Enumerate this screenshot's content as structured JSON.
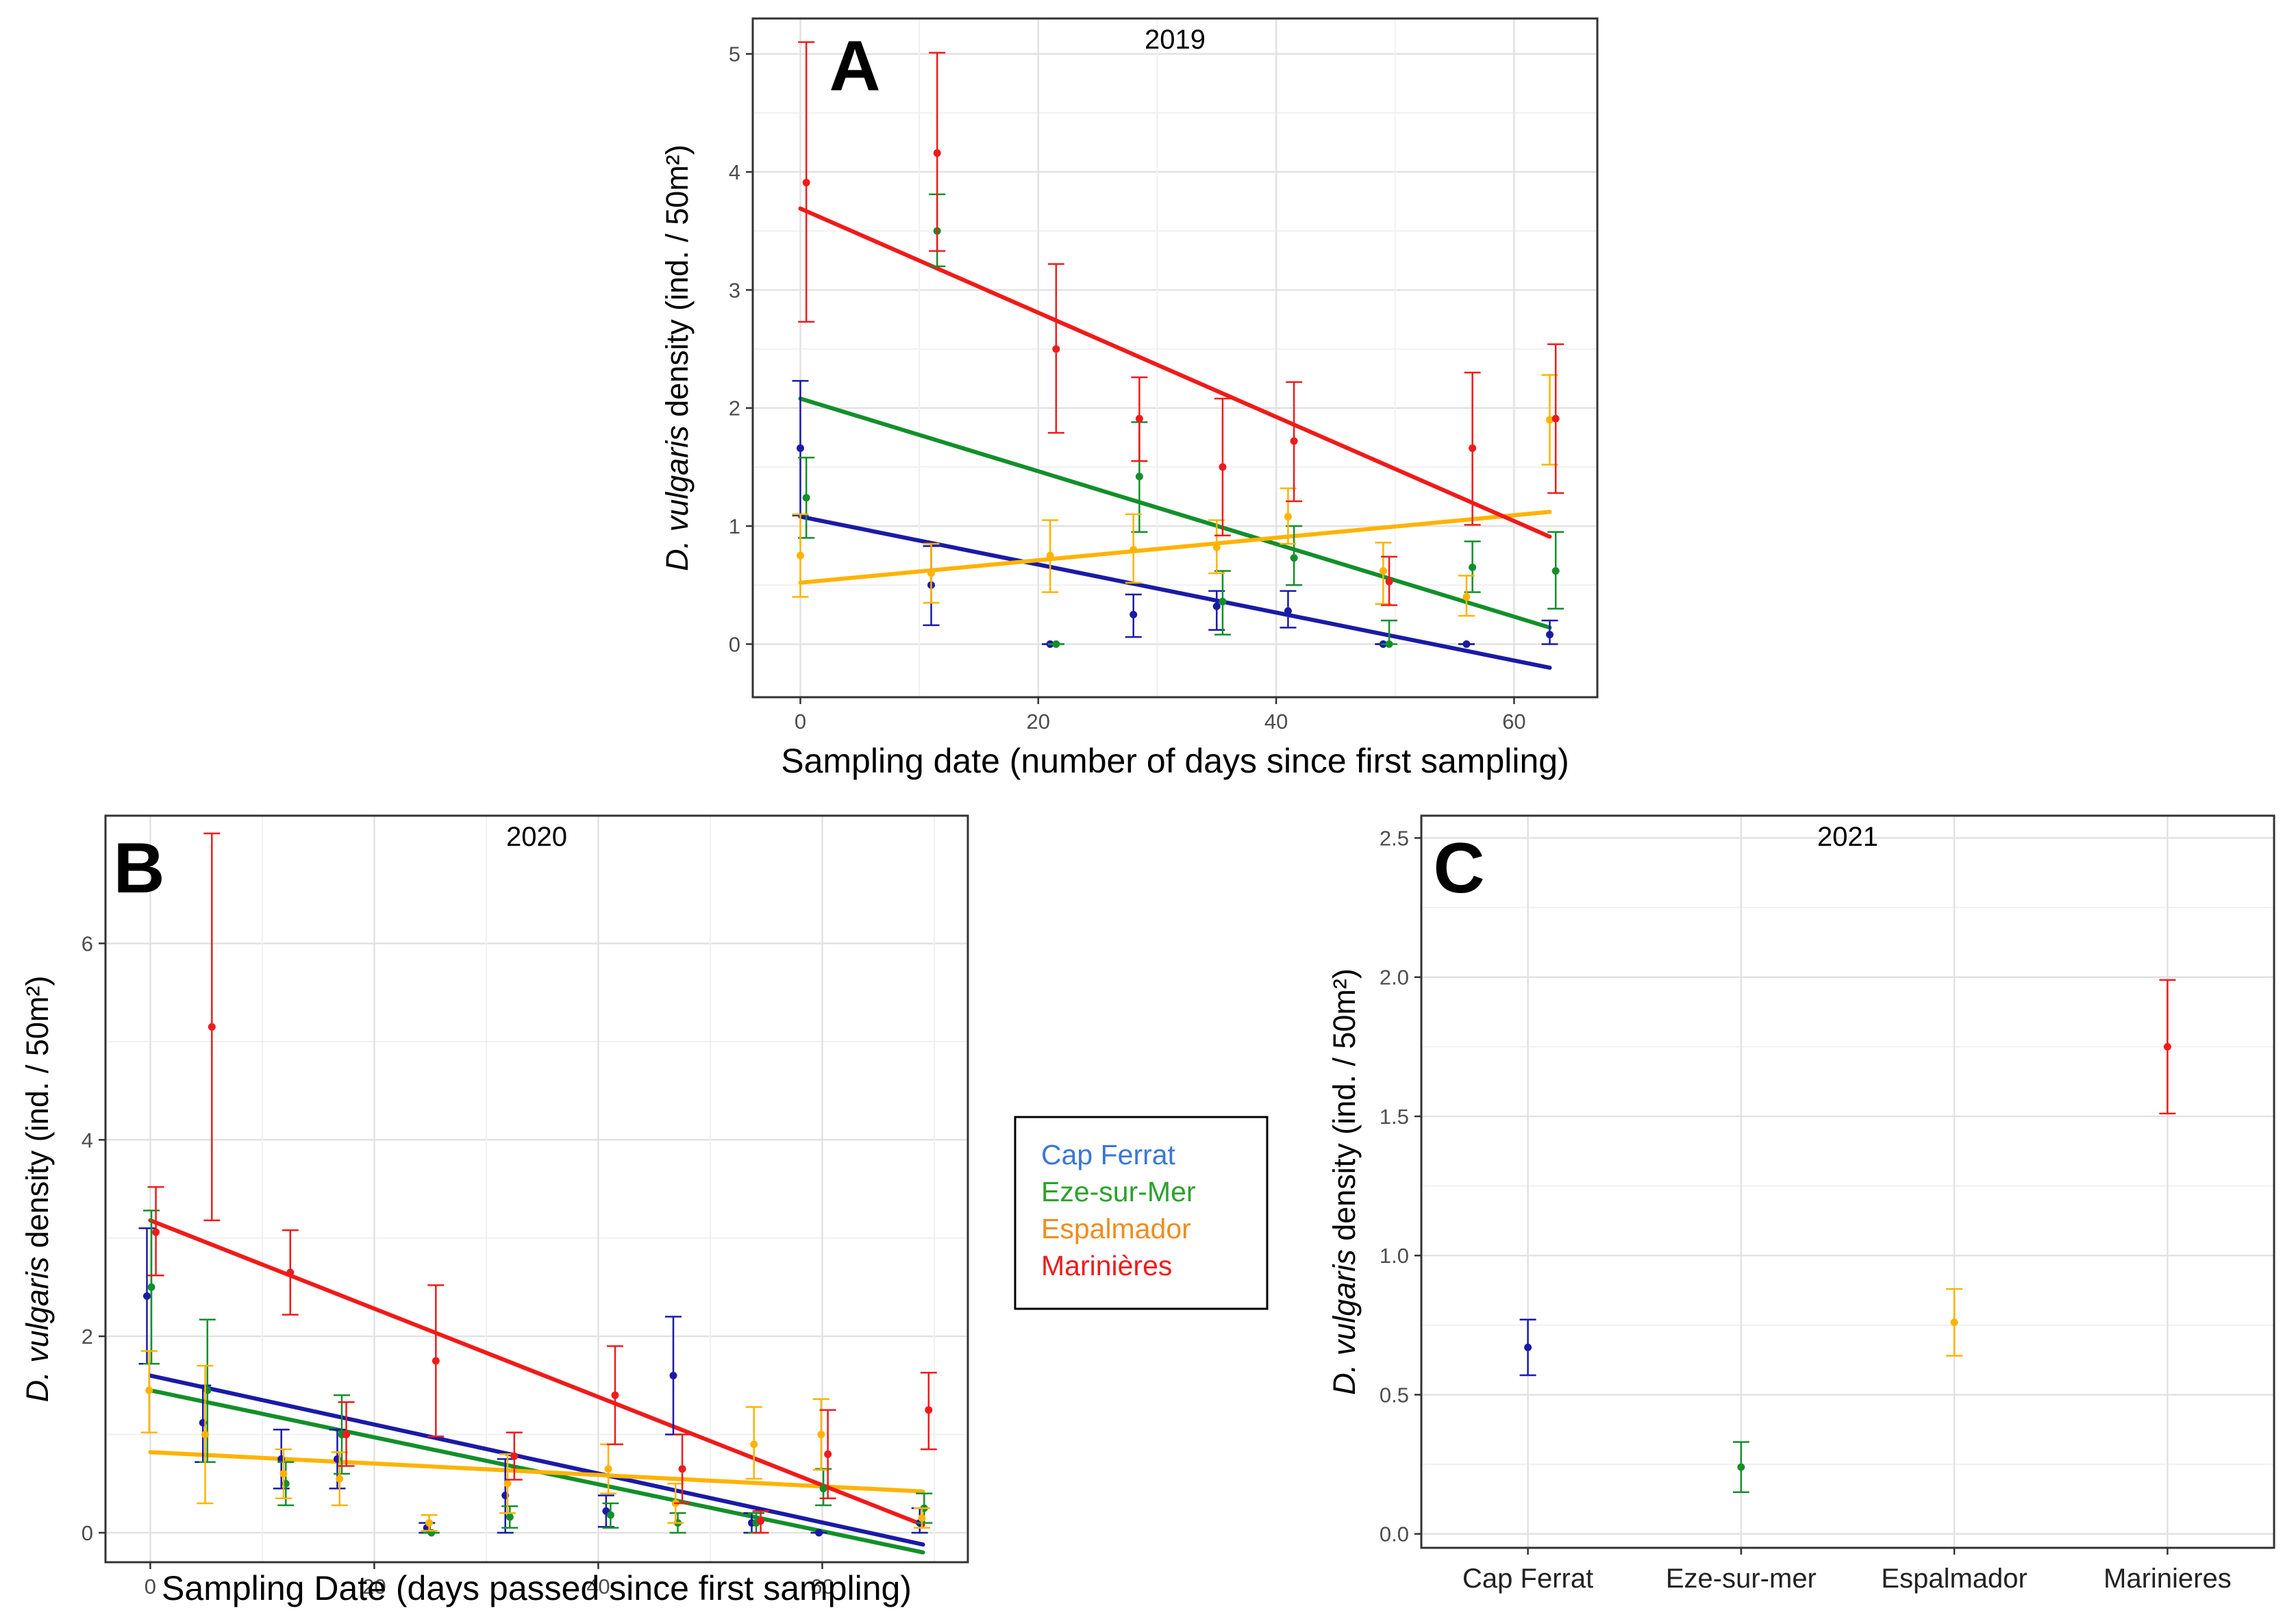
{
  "colors": {
    "Cap Ferrat": "#1a1aa6",
    "Eze-sur-Mer": "#138f2a",
    "Espalmador": "#ffb300",
    "Marinieres": "#ef1b1b"
  },
  "legend": {
    "entries": [
      {
        "label": "Cap Ferrat",
        "color": "#3a78d6"
      },
      {
        "label": "Eze-sur-Mer",
        "color": "#2ea02e"
      },
      {
        "label": "Espalmador",
        "color": "#f28c1e"
      },
      {
        "label": "Marinières",
        "color": "#ee1c1c"
      }
    ]
  },
  "chart_data": [
    {
      "panel": "A",
      "title": "2019",
      "type": "scatter",
      "xlabel": "Sampling date (number of days since first sampling)",
      "ylabel_italic": "D. vulgaris",
      "ylabel_rest": " density (ind.  / 50m²)",
      "xlim": [
        -4,
        67
      ],
      "ylim": [
        -0.45,
        5.3
      ],
      "xticks": [
        0,
        20,
        40,
        60
      ],
      "yticks": [
        0,
        1,
        2,
        3,
        4,
        5
      ],
      "grid": true,
      "series": [
        {
          "site": "Cap Ferrat",
          "points": [
            [
              0,
              1.66,
              1.09,
              2.23
            ],
            [
              11,
              0.5,
              0.16,
              0.83
            ],
            [
              21,
              0.0,
              0.0,
              0.0
            ],
            [
              28,
              0.25,
              0.06,
              0.42
            ],
            [
              35,
              0.32,
              0.12,
              0.45
            ],
            [
              41,
              0.28,
              0.14,
              0.45
            ],
            [
              49,
              0.0,
              0.0,
              0.0
            ],
            [
              56,
              0.0,
              0.0,
              0.0
            ],
            [
              63,
              0.08,
              0.0,
              0.2
            ]
          ],
          "fit": [
            [
              0,
              1.08
            ],
            [
              63,
              -0.2
            ]
          ]
        },
        {
          "site": "Eze-sur-Mer",
          "points": [
            [
              0.5,
              1.24,
              0.9,
              1.58
            ],
            [
              11.5,
              3.5,
              3.2,
              3.81
            ],
            [
              21.5,
              0.0,
              0.0,
              0.0
            ],
            [
              28.5,
              1.42,
              0.95,
              1.88
            ],
            [
              35.5,
              0.36,
              0.08,
              0.62
            ],
            [
              41.5,
              0.73,
              0.5,
              1.0
            ],
            [
              49.5,
              0.0,
              0.0,
              0.2
            ],
            [
              56.5,
              0.65,
              0.44,
              0.87
            ],
            [
              63.5,
              0.62,
              0.3,
              0.95
            ]
          ],
          "fit": [
            [
              0,
              2.08
            ],
            [
              63,
              0.14
            ]
          ]
        },
        {
          "site": "Espalmador",
          "points": [
            [
              0,
              0.75,
              0.4,
              1.1
            ],
            [
              11,
              0.6,
              0.35,
              0.85
            ],
            [
              21,
              0.75,
              0.44,
              1.05
            ],
            [
              28,
              0.8,
              0.52,
              1.1
            ],
            [
              35,
              0.82,
              0.6,
              1.05
            ],
            [
              41,
              1.08,
              0.85,
              1.32
            ],
            [
              49,
              0.62,
              0.34,
              0.86
            ],
            [
              56,
              0.4,
              0.24,
              0.58
            ],
            [
              63,
              1.9,
              1.52,
              2.28
            ]
          ],
          "fit": [
            [
              0,
              0.52
            ],
            [
              63,
              1.12
            ]
          ]
        },
        {
          "site": "Marinieres",
          "points": [
            [
              0.5,
              3.91,
              2.73,
              5.1
            ],
            [
              11.5,
              4.16,
              3.33,
              5.01
            ],
            [
              21.5,
              2.5,
              1.79,
              3.22
            ],
            [
              28.5,
              1.91,
              1.55,
              2.26
            ],
            [
              35.5,
              1.5,
              0.92,
              2.08
            ],
            [
              41.5,
              1.72,
              1.21,
              2.22
            ],
            [
              49.5,
              0.53,
              0.33,
              0.74
            ],
            [
              56.5,
              1.66,
              1.01,
              2.3
            ],
            [
              63.5,
              1.91,
              1.28,
              2.54
            ]
          ],
          "fit": [
            [
              0,
              3.69
            ],
            [
              63,
              0.91
            ]
          ]
        }
      ]
    },
    {
      "panel": "B",
      "title": "2020",
      "type": "scatter",
      "xlabel": "Sampling Date (days passed since first sampling)",
      "ylabel_italic": "D. vulgaris",
      "ylabel_rest": " density (ind.  / 50m²)",
      "xlim": [
        -4,
        73
      ],
      "ylim": [
        -0.3,
        7.3
      ],
      "xticks": [
        0,
        20,
        40,
        60
      ],
      "yticks": [
        0,
        2,
        4,
        6
      ],
      "grid": true,
      "series": [
        {
          "site": "Cap Ferrat",
          "points": [
            [
              -0.3,
              2.41,
              1.72,
              3.1
            ],
            [
              4.7,
              1.12,
              0.72,
              1.5
            ],
            [
              11.7,
              0.75,
              0.45,
              1.05
            ],
            [
              16.7,
              0.75,
              0.45,
              1.05
            ],
            [
              24.7,
              0.05,
              0.0,
              0.1
            ],
            [
              31.7,
              0.38,
              0.0,
              0.75
            ],
            [
              40.7,
              0.22,
              0.06,
              0.38
            ],
            [
              46.7,
              1.6,
              1.0,
              2.2
            ],
            [
              53.7,
              0.1,
              0.0,
              0.2
            ],
            [
              59.7,
              0.0,
              0.0,
              0.0
            ],
            [
              68.7,
              0.1,
              0.0,
              0.25
            ]
          ],
          "fit": [
            [
              0,
              1.6
            ],
            [
              69,
              -0.12
            ]
          ]
        },
        {
          "site": "Eze-sur-Mer",
          "points": [
            [
              0.1,
              2.5,
              1.72,
              3.28
            ],
            [
              5.1,
              1.45,
              0.72,
              2.17
            ],
            [
              12.1,
              0.5,
              0.28,
              0.72
            ],
            [
              17.1,
              1.0,
              0.6,
              1.4
            ],
            [
              25.1,
              0.0,
              0.0,
              0.0
            ],
            [
              32.1,
              0.16,
              0.05,
              0.27
            ],
            [
              41.1,
              0.18,
              0.05,
              0.3
            ],
            [
              47.1,
              0.1,
              0.0,
              0.2
            ],
            [
              54.1,
              0.1,
              0.0,
              0.2
            ],
            [
              60.1,
              0.45,
              0.28,
              0.65
            ],
            [
              69.1,
              0.25,
              0.1,
              0.4
            ]
          ],
          "fit": [
            [
              0,
              1.45
            ],
            [
              69,
              -0.2
            ]
          ]
        },
        {
          "site": "Espalmador",
          "points": [
            [
              -0.1,
              1.45,
              1.02,
              1.85
            ],
            [
              4.9,
              1.0,
              0.3,
              1.7
            ],
            [
              11.9,
              0.6,
              0.35,
              0.85
            ],
            [
              16.9,
              0.55,
              0.28,
              0.82
            ],
            [
              24.9,
              0.1,
              0.02,
              0.18
            ],
            [
              31.9,
              0.5,
              0.2,
              0.8
            ],
            [
              40.9,
              0.65,
              0.4,
              0.9
            ],
            [
              46.9,
              0.3,
              0.1,
              0.5
            ],
            [
              53.9,
              0.9,
              0.55,
              1.28
            ],
            [
              59.9,
              1.0,
              0.64,
              1.36
            ],
            [
              68.9,
              0.15,
              0.05,
              0.25
            ]
          ],
          "fit": [
            [
              0,
              0.82
            ],
            [
              69,
              0.42
            ]
          ]
        },
        {
          "site": "Marinieres",
          "points": [
            [
              0.5,
              3.06,
              2.62,
              3.52
            ],
            [
              5.5,
              5.15,
              3.18,
              7.12
            ],
            [
              12.5,
              2.65,
              2.22,
              3.08
            ],
            [
              17.5,
              1.0,
              0.68,
              1.33
            ],
            [
              25.5,
              1.75,
              0.98,
              2.52
            ],
            [
              32.5,
              0.78,
              0.54,
              1.02
            ],
            [
              41.5,
              1.4,
              0.9,
              1.9
            ],
            [
              47.5,
              0.65,
              0.3,
              1.0
            ],
            [
              54.5,
              0.12,
              0.0,
              0.22
            ],
            [
              60.5,
              0.8,
              0.35,
              1.25
            ],
            [
              69.5,
              1.25,
              0.85,
              1.63
            ]
          ],
          "fit": [
            [
              0,
              3.18
            ],
            [
              69,
              0.08
            ]
          ]
        }
      ]
    },
    {
      "panel": "C",
      "title": "2021",
      "type": "scatter",
      "xlabel": "",
      "ylabel_italic": "D. vulgaris",
      "ylabel_rest": " density (ind.  / 50m²)",
      "categories": [
        "Cap Ferrat",
        "Eze-sur-mer",
        "Espalmador",
        "Marinieres"
      ],
      "ylim": [
        -0.05,
        2.58
      ],
      "yticks": [
        0.0,
        0.5,
        1.0,
        1.5,
        2.0,
        2.5
      ],
      "ytick_labels": [
        "0.0",
        "0.5",
        "1.0",
        "1.5",
        "2.0",
        "2.5"
      ],
      "grid": true,
      "points": [
        {
          "site": "Cap Ferrat",
          "value": 0.67,
          "low": 0.57,
          "high": 0.77
        },
        {
          "site": "Eze-sur-Mer",
          "value": 0.24,
          "low": 0.15,
          "high": 0.33
        },
        {
          "site": "Espalmador",
          "value": 0.76,
          "low": 0.64,
          "high": 0.88
        },
        {
          "site": "Marinieres",
          "value": 1.75,
          "low": 1.51,
          "high": 1.99
        }
      ]
    }
  ]
}
